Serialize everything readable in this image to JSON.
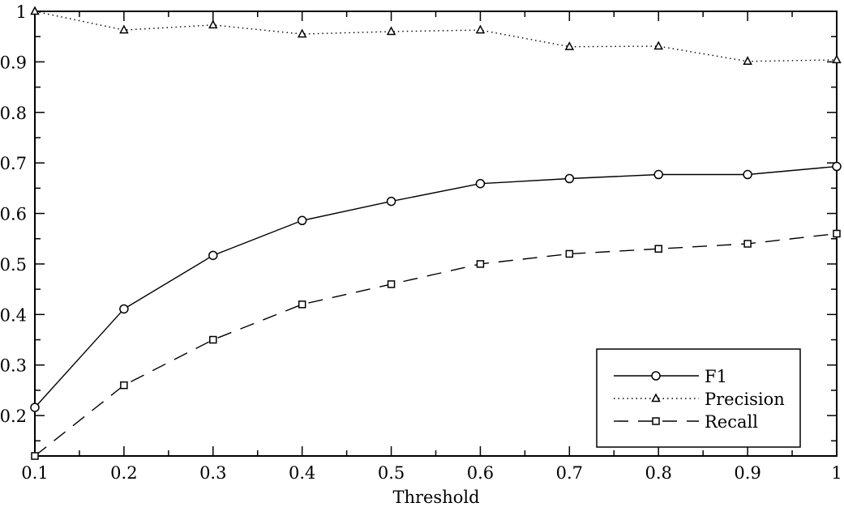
{
  "chart_data": {
    "type": "line",
    "title": "",
    "xlabel": "Threshold",
    "ylabel": "",
    "xlim": [
      0.1,
      1.0
    ],
    "ylim": [
      0.12,
      1.0
    ],
    "grid": false,
    "legend_position": "bottom-right",
    "x": [
      0.1,
      0.2,
      0.3,
      0.4,
      0.5,
      0.6,
      0.7,
      0.8,
      0.9,
      1.0
    ],
    "x_tick_labels": [
      "0.1",
      "0.2",
      "0.3",
      "0.4",
      "0.5",
      "0.6",
      "0.7",
      "0.8",
      "0.9",
      "1"
    ],
    "y_ticks": [
      0.2,
      0.3,
      0.4,
      0.5,
      0.6,
      0.7,
      0.8,
      0.9,
      1.0
    ],
    "y_tick_labels": [
      "0.2",
      "0.3",
      "0.4",
      "0.5",
      "0.6",
      "0.7",
      "0.8",
      "0.9",
      "1"
    ],
    "series": [
      {
        "name": "F1",
        "marker": "circle",
        "line": "solid",
        "color": "#000000",
        "values": [
          0.216,
          0.411,
          0.517,
          0.586,
          0.624,
          0.659,
          0.669,
          0.677,
          0.677,
          0.693
        ]
      },
      {
        "name": "Precision",
        "marker": "triangle",
        "line": "dotted",
        "color": "#000000",
        "values": [
          1.0,
          0.963,
          0.973,
          0.955,
          0.96,
          0.963,
          0.93,
          0.931,
          0.901,
          0.904
        ]
      },
      {
        "name": "Recall",
        "marker": "square",
        "line": "dashed",
        "color": "#000000",
        "values": [
          0.12,
          0.26,
          0.35,
          0.42,
          0.46,
          0.5,
          0.52,
          0.53,
          0.54,
          0.56
        ]
      }
    ]
  }
}
